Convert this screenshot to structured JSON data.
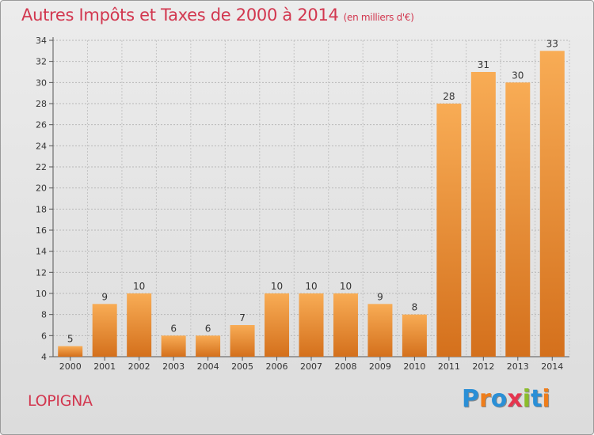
{
  "header": {
    "title": "Autres Impôts et Taxes de 2000 à 2014",
    "subtitle": "(en milliers d'€)"
  },
  "footer": {
    "commune": "LOPIGNA",
    "brand": "Proxiti",
    "brand_letters": [
      {
        "char": "P",
        "color": "#2a8fd6"
      },
      {
        "char": "r",
        "color": "#ef7d1a"
      },
      {
        "char": "o",
        "color": "#2a8fd6"
      },
      {
        "char": "x",
        "color": "#e5354f"
      },
      {
        "char": "i",
        "color": "#8bbd2a"
      },
      {
        "char": "t",
        "color": "#2a8fd6"
      },
      {
        "char": "i",
        "color": "#ef7d1a"
      }
    ]
  },
  "colors": {
    "accent": "#d2374f",
    "bar_light": "#f7a84e",
    "bar_dark": "#d8731f",
    "grid": "#bdbdbd"
  },
  "chart_data": {
    "type": "bar",
    "categories": [
      "2000",
      "2001",
      "2002",
      "2003",
      "2004",
      "2005",
      "2006",
      "2007",
      "2008",
      "2009",
      "2010",
      "2011",
      "2012",
      "2013",
      "2014"
    ],
    "values": [
      5,
      9,
      10,
      6,
      6,
      7,
      10,
      10,
      10,
      9,
      8,
      28,
      31,
      30,
      33
    ],
    "ylim": [
      4,
      34
    ],
    "yticks": [
      4,
      6,
      8,
      10,
      12,
      14,
      16,
      18,
      20,
      22,
      24,
      26,
      28,
      30,
      32,
      34
    ],
    "grid": true,
    "data_labels": true
  }
}
